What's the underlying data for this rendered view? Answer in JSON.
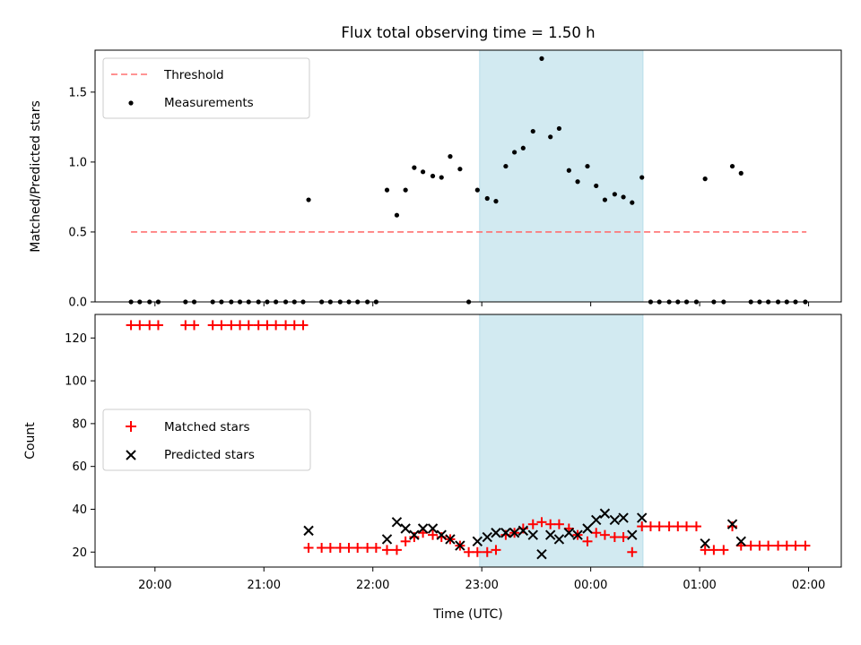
{
  "chart_data": [
    {
      "type": "scatter",
      "title": "Flux total observing time = 1.50 h",
      "ylabel": "Matched/Predicted stars",
      "xlabel": "",
      "x_unit": "hours (UTC, 20.0 = 20:00; >24 = after midnight)",
      "xlim": [
        19.45,
        26.3
      ],
      "ylim": [
        0,
        1.8
      ],
      "yticks": [
        0.0,
        0.5,
        1.0,
        1.5
      ],
      "ytick_labels": [
        "0.0",
        "0.5",
        "1.0",
        "1.5"
      ],
      "xticks": [
        20,
        21,
        22,
        23,
        24,
        25,
        26
      ],
      "xtick_labels_shown": false,
      "grid": false,
      "legend_position": "upper left",
      "shaded_region": {
        "x0": 22.98,
        "x1": 24.48,
        "color": "#add8e6"
      },
      "series": [
        {
          "name": "Threshold",
          "style": "dashed-line",
          "color": "#ff7070",
          "x": [
            19.78,
            25.98
          ],
          "y": [
            0.5,
            0.5
          ]
        },
        {
          "name": "Measurements",
          "style": "dot",
          "color": "#000000",
          "x": [
            19.78,
            19.86,
            19.95,
            20.03,
            20.28,
            20.36,
            20.53,
            20.61,
            20.7,
            20.78,
            20.86,
            20.95,
            21.03,
            21.11,
            21.2,
            21.28,
            21.36,
            21.41,
            21.53,
            21.61,
            21.7,
            21.78,
            21.86,
            21.95,
            22.03,
            22.13,
            22.22,
            22.3,
            22.38,
            22.46,
            22.55,
            22.63,
            22.71,
            22.8,
            22.88,
            22.96,
            23.05,
            23.13,
            23.22,
            23.3,
            23.38,
            23.47,
            23.55,
            23.63,
            23.71,
            23.8,
            23.88,
            23.97,
            24.05,
            24.13,
            24.22,
            24.3,
            24.38,
            24.47,
            24.55,
            24.63,
            24.72,
            24.8,
            24.88,
            24.97,
            25.05,
            25.13,
            25.22,
            25.3,
            25.38,
            25.47,
            25.55,
            25.63,
            25.72,
            25.8,
            25.88,
            25.97
          ],
          "y": [
            0,
            0,
            0,
            0,
            0,
            0,
            0,
            0,
            0,
            0,
            0,
            0,
            0,
            0,
            0,
            0,
            0,
            0.73,
            0,
            0,
            0,
            0,
            0,
            0,
            0,
            0.8,
            0.62,
            0.8,
            0.96,
            0.93,
            0.9,
            0.89,
            1.04,
            0.95,
            0,
            0.8,
            0.74,
            0.72,
            0.97,
            1.07,
            1.1,
            1.22,
            1.74,
            1.18,
            1.24,
            0.94,
            0.86,
            0.97,
            0.83,
            0.73,
            0.77,
            0.75,
            0.71,
            0.89,
            0,
            0,
            0,
            0,
            0,
            0,
            0.88,
            0,
            0,
            0.97,
            0.92,
            0,
            0,
            0,
            0,
            0,
            0,
            0
          ]
        }
      ]
    },
    {
      "type": "scatter",
      "title": "",
      "ylabel": "Count",
      "xlabel": "Time (UTC)",
      "xlim": [
        19.45,
        26.3
      ],
      "ylim": [
        13,
        131
      ],
      "yticks": [
        20,
        40,
        60,
        80,
        100,
        120
      ],
      "ytick_labels": [
        "20",
        "40",
        "60",
        "80",
        "100",
        "120"
      ],
      "xticks": [
        20,
        21,
        22,
        23,
        24,
        25,
        26
      ],
      "xtick_labels": [
        "20:00",
        "21:00",
        "22:00",
        "23:00",
        "00:00",
        "01:00",
        "02:00"
      ],
      "grid": false,
      "legend_position": "center left",
      "shaded_region": {
        "x0": 22.98,
        "x1": 24.48,
        "color": "#add8e6"
      },
      "series": [
        {
          "name": "Matched stars",
          "marker": "+",
          "color": "#ff0000",
          "x": [
            19.78,
            19.86,
            19.95,
            20.03,
            20.28,
            20.36,
            20.53,
            20.61,
            20.7,
            20.78,
            20.86,
            20.95,
            21.03,
            21.11,
            21.2,
            21.28,
            21.36,
            21.41,
            21.53,
            21.61,
            21.7,
            21.78,
            21.86,
            21.95,
            22.03,
            22.13,
            22.22,
            22.3,
            22.38,
            22.46,
            22.55,
            22.63,
            22.71,
            22.8,
            22.88,
            22.96,
            23.05,
            23.13,
            23.22,
            23.3,
            23.38,
            23.47,
            23.55,
            23.63,
            23.71,
            23.8,
            23.88,
            23.97,
            24.05,
            24.13,
            24.22,
            24.3,
            24.38,
            24.47,
            24.55,
            24.63,
            24.72,
            24.8,
            24.88,
            24.97,
            25.05,
            25.13,
            25.22,
            25.3,
            25.38,
            25.47,
            25.55,
            25.63,
            25.72,
            25.8,
            25.88,
            25.97
          ],
          "y": [
            126,
            126,
            126,
            126,
            126,
            126,
            126,
            126,
            126,
            126,
            126,
            126,
            126,
            126,
            126,
            126,
            126,
            22,
            22,
            22,
            22,
            22,
            22,
            22,
            22,
            21,
            21,
            25,
            27,
            29,
            28,
            27,
            26,
            23,
            20,
            20,
            20,
            21,
            28,
            29,
            31,
            33,
            34,
            33,
            33,
            31,
            28,
            25,
            29,
            28,
            27,
            27,
            20,
            32,
            32,
            32,
            32,
            32,
            32,
            32,
            21,
            21,
            21,
            32,
            23,
            23,
            23,
            23,
            23,
            23,
            23,
            23
          ]
        },
        {
          "name": "Predicted stars",
          "marker": "x",
          "color": "#000000",
          "x": [
            21.41,
            22.13,
            22.22,
            22.3,
            22.38,
            22.46,
            22.55,
            22.63,
            22.71,
            22.8,
            22.96,
            23.05,
            23.13,
            23.22,
            23.3,
            23.38,
            23.47,
            23.55,
            23.63,
            23.71,
            23.8,
            23.88,
            23.97,
            24.05,
            24.13,
            24.22,
            24.3,
            24.38,
            24.47,
            25.05,
            25.3,
            25.38
          ],
          "y": [
            30,
            26,
            34,
            31,
            28,
            31,
            31,
            28,
            26,
            23,
            25,
            27,
            29,
            29,
            29,
            30,
            28,
            19,
            28,
            26,
            29,
            28,
            31,
            35,
            38,
            35,
            36,
            28,
            36,
            24,
            33,
            25
          ]
        }
      ]
    }
  ]
}
